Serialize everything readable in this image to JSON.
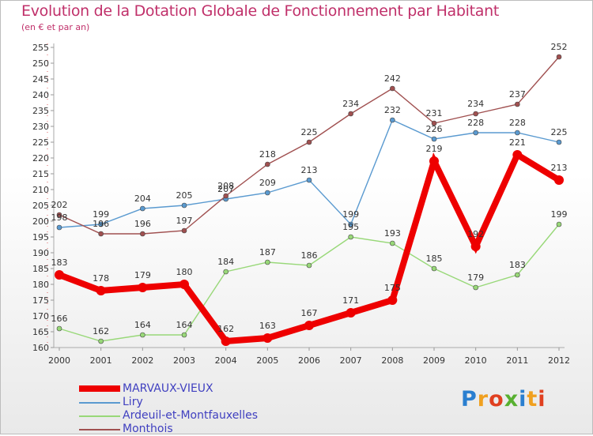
{
  "title": "Evolution de la Dotation Globale de Fonctionnement par Habitant",
  "subtitle": "(en € et par an)",
  "logo": {
    "text": "Proxiti",
    "colors": [
      "#2a7fd0",
      "#f0a020",
      "#e04020",
      "#58b030",
      "#2a7fd0",
      "#f0a020",
      "#e04020"
    ]
  },
  "chart_data": {
    "type": "line",
    "x": [
      "2000",
      "2001",
      "2002",
      "2003",
      "2004",
      "2005",
      "2006",
      "2007",
      "2008",
      "2009",
      "2010",
      "2011",
      "2012"
    ],
    "ylim": [
      160,
      255
    ],
    "yticks": [
      160,
      165,
      170,
      175,
      180,
      185,
      190,
      195,
      200,
      205,
      210,
      215,
      220,
      225,
      230,
      235,
      240,
      245,
      250,
      255
    ],
    "grid": false,
    "legend_position": "bottom-left",
    "series": [
      {
        "name": "MARVAUX-VIEUX",
        "color": "#ee0000",
        "values": [
          183,
          178,
          179,
          180,
          162,
          163,
          167,
          171,
          175,
          219,
          192,
          221,
          213
        ]
      },
      {
        "name": "Liry",
        "color": "#5a9ad0",
        "values": [
          198,
          199,
          204,
          205,
          207,
          209,
          213,
          199,
          232,
          226,
          228,
          228,
          225
        ]
      },
      {
        "name": "Ardeuil-et-Montfauxelles",
        "color": "#98d878",
        "values": [
          166,
          162,
          164,
          164,
          184,
          187,
          186,
          195,
          193,
          185,
          179,
          183,
          199
        ]
      },
      {
        "name": "Monthois",
        "color": "#a05050",
        "values": [
          202,
          196,
          196,
          197,
          208,
          218,
          225,
          234,
          242,
          231,
          234,
          237,
          252
        ]
      }
    ]
  }
}
